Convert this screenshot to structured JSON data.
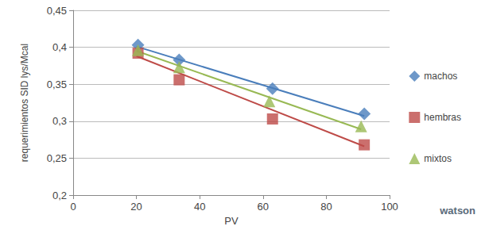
{
  "chart_data": {
    "type": "scatter",
    "x_label": "PV",
    "y_label": "requerimientos SID lys/Mcal",
    "xlim": [
      0,
      100
    ],
    "xticks": [
      0,
      20,
      40,
      60,
      80,
      100
    ],
    "ylim": [
      0.2,
      0.45
    ],
    "yticks": [
      {
        "value": 0.2,
        "label": "0,2"
      },
      {
        "value": 0.25,
        "label": "0,25"
      },
      {
        "value": 0.3,
        "label": "0,3"
      },
      {
        "value": 0.35,
        "label": "0,35"
      },
      {
        "value": 0.4,
        "label": "0,4"
      },
      {
        "value": 0.45,
        "label": "0,45"
      }
    ],
    "grid": true,
    "legend": "right",
    "annotations": [
      "watson"
    ],
    "series": [
      {
        "name": "machos",
        "color": "#4a7ebb",
        "marker": "diamond",
        "x": [
          20.5,
          33.5,
          63,
          92
        ],
        "values": [
          0.403,
          0.383,
          0.344,
          0.31
        ],
        "trend": {
          "x": [
            20,
            92
          ],
          "values": [
            0.401,
            0.307
          ]
        }
      },
      {
        "name": "hembras",
        "color": "#be4b48",
        "marker": "square",
        "x": [
          20.5,
          33.5,
          63,
          92
        ],
        "values": [
          0.392,
          0.356,
          0.303,
          0.268
        ],
        "trend": {
          "x": [
            20,
            92
          ],
          "values": [
            0.388,
            0.266
          ]
        }
      },
      {
        "name": "mixtos",
        "color": "#98b954",
        "marker": "triangle",
        "x": [
          20.5,
          33.5,
          62,
          91
        ],
        "values": [
          0.396,
          0.373,
          0.327,
          0.293
        ],
        "trend": {
          "x": [
            20,
            91
          ],
          "values": [
            0.395,
            0.289
          ]
        }
      }
    ]
  }
}
